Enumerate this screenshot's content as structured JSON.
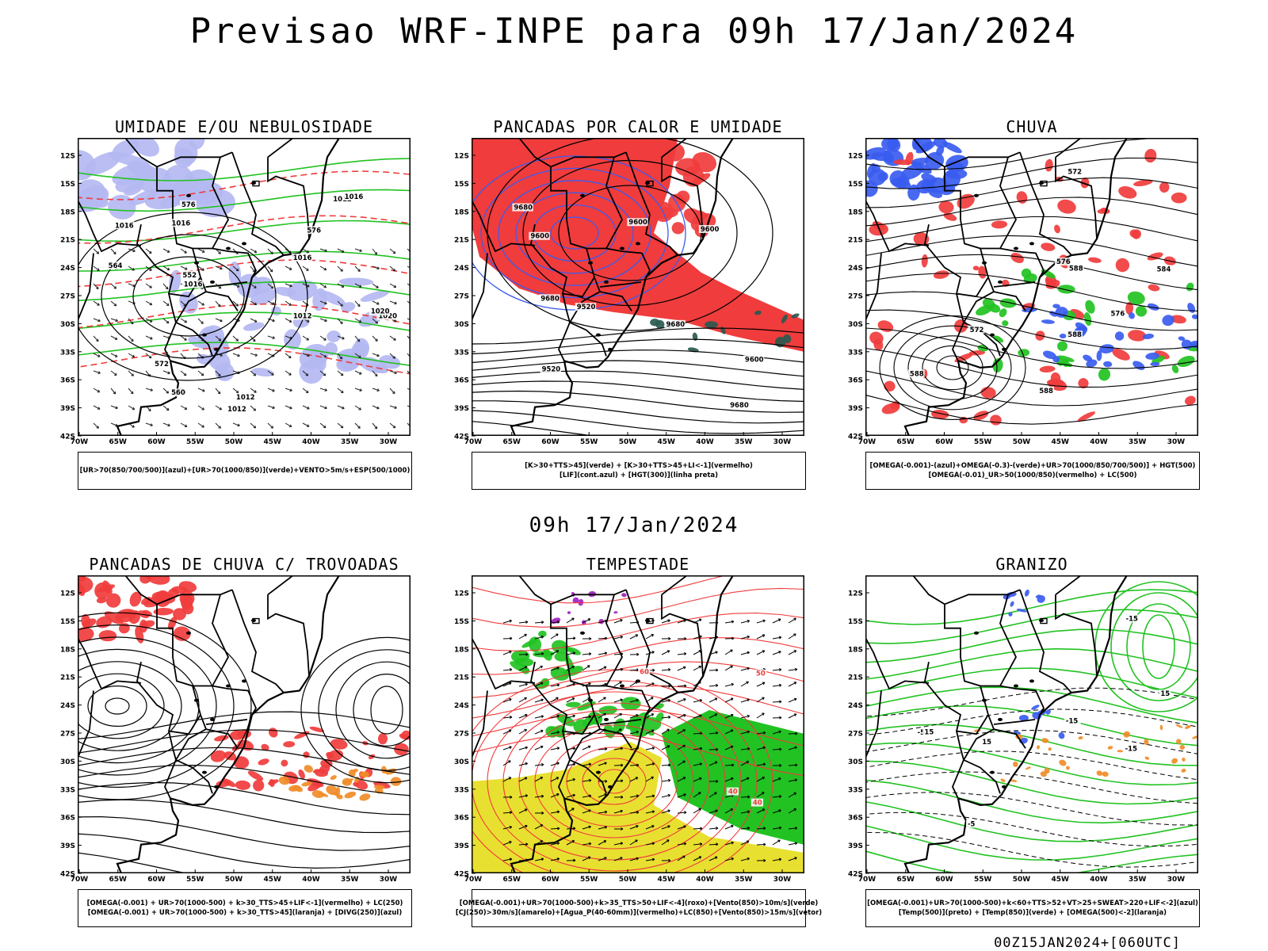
{
  "title": "Previsao WRF-INPE  para 09h 17/Jan/2024",
  "subtitle": "09h 17/Jan/2024",
  "footer": "00Z15JAN2024+[060UTC]",
  "axes": {
    "lat_labels": [
      "12S",
      "15S",
      "18S",
      "21S",
      "24S",
      "27S",
      "30S",
      "33S",
      "36S",
      "39S",
      "42S"
    ],
    "lon_labels": [
      "70W",
      "65W",
      "60W",
      "55W",
      "50W",
      "45W",
      "40W",
      "35W",
      "30W"
    ]
  },
  "colors": {
    "red": "#f03c3c",
    "blue": "#3a5cf0",
    "green": "#22c222",
    "lavender": "#b4b8f2",
    "yellow": "#e8e030",
    "orange": "#f08c28",
    "purple": "#a020c0",
    "darkteal": "#2a5a50"
  },
  "panels": [
    {
      "id": "umidade",
      "title": "UMIDADE E/OU NEBULOSIDADE",
      "legend": [
        "[UR>70(850/700/500)](azul)+[UR>70(1000/850)](verde)+VENTO>5m/s+ESP(500/1000)"
      ],
      "labels": [
        "1016",
        "1016",
        "1016",
        "1012",
        "1012",
        "1012",
        "1012",
        "1016",
        "1016",
        "1020",
        "1020",
        "576",
        "576",
        "572",
        "564",
        "560",
        "552"
      ]
    },
    {
      "id": "pancadas_calor",
      "title": "PANCADAS POR CALOR E UMIDADE",
      "legend": [
        "[K>30+TTS>45](verde) + [K>30+TTS>45+LI<-1](vermelho)",
        "[LIF](cont.azul) + [HGT(300)](linha preta)"
      ],
      "labels": [
        "9680",
        "9680",
        "9680",
        "9680",
        "9600",
        "9600",
        "9520",
        "9520",
        "9600",
        "9600"
      ]
    },
    {
      "id": "chuva",
      "title": "CHUVA",
      "legend": [
        "[OMEGA(-0.001)-(azul)+OMEGA(-0.3)-(verde)+UR>70(1000/850/700/500)] + HGT(500)",
        "[OMEGA(-0.01)_UR>50(1000/850)(vermelho) + LC(500)"
      ],
      "labels": [
        "588",
        "588",
        "588",
        "588",
        "584",
        "576",
        "572",
        "572",
        "576"
      ]
    },
    {
      "id": "pancadas_trovoadas",
      "title": "PANCADAS DE CHUVA C/ TROVOADAS",
      "legend": [
        "[OMEGA(-0.001) + UR>70(1000-500) + k>30_TTS>45+LIF<-1](vermelho) + LC(250)",
        "[OMEGA(-0.001) + UR>70(1000-500) + k>30_TTS>45](laranja) + [DIVG(250)](azul)"
      ],
      "labels": []
    },
    {
      "id": "tempestade",
      "title": "TEMPESTADE",
      "legend": [
        "[OMEGA(-0.001)+UR>70(1000-500)+k>35_TTS>50+LIF<-4](roxo)+[Vento(850)>10m/s](verde)",
        "[CJ(250)>30m/s](amarelo)+[Agua_P(40-60mm)](vermelho)+LC(850)+[Vento(850)>15m/s](vetor)"
      ],
      "labels": [
        "40",
        "50",
        "40",
        "60"
      ]
    },
    {
      "id": "granizo",
      "title": "GRANIZO",
      "legend": [
        "[OMEGA(-0.001)+UR>70(1000-500)+k<60+TTS>52+VT>25+SWEAT>220+LIF<-2](azul)",
        "[Temp(500)](preto) + [Temp(850)](verde) + [OMEGA(500)<-2](laranja)"
      ],
      "labels": [
        "-15",
        "-15",
        "-15",
        "-5",
        "15",
        "15",
        "15",
        "-5"
      ]
    }
  ]
}
